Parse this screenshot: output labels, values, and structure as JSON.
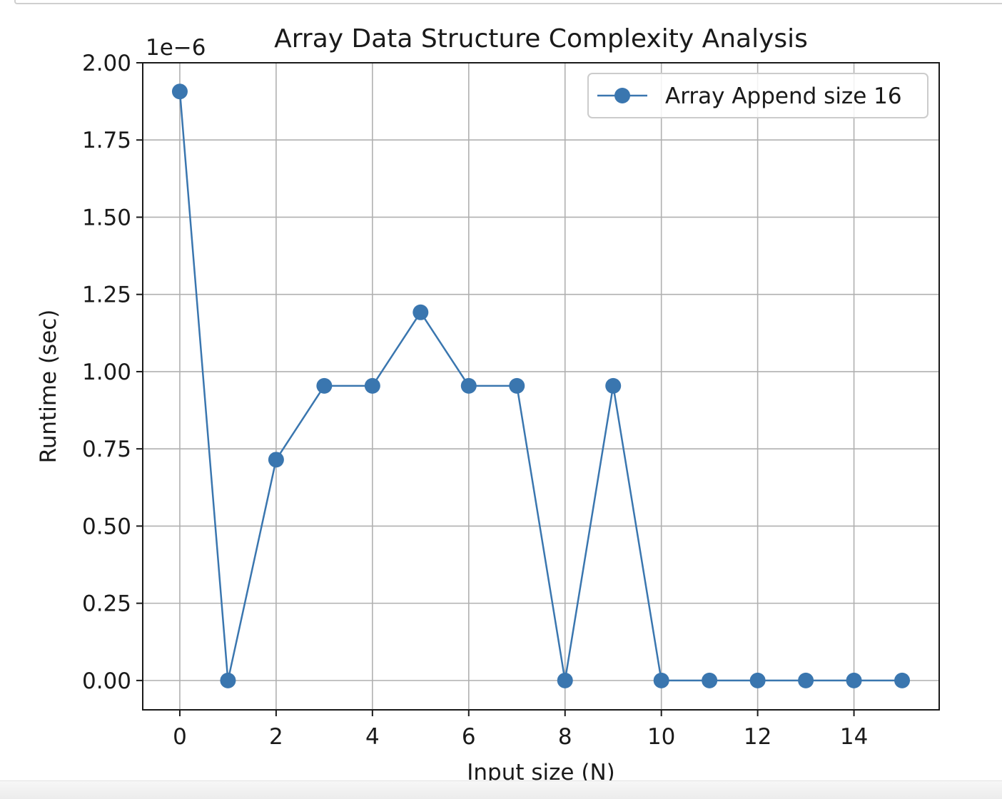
{
  "chart_data": {
    "type": "line",
    "title": "Array Data Structure Complexity Analysis",
    "xlabel": "Input size (N)",
    "ylabel": "Runtime (sec)",
    "y_offset_label": "1e−6",
    "xlim": [
      -0.77,
      15.77
    ],
    "ylim": [
      -0.095,
      2.0
    ],
    "x_ticks": [
      0,
      2,
      4,
      6,
      8,
      10,
      12,
      14
    ],
    "x_tick_labels": [
      "0",
      "2",
      "4",
      "6",
      "8",
      "10",
      "12",
      "14"
    ],
    "y_ticks": [
      0,
      0.25,
      0.5,
      0.75,
      1.0,
      1.25,
      1.5,
      1.75,
      2.0
    ],
    "y_tick_labels": [
      "0.00",
      "0.25",
      "0.50",
      "0.75",
      "1.00",
      "1.25",
      "1.50",
      "1.75",
      "2.00"
    ],
    "grid": true,
    "legend_position": "top-right",
    "series": [
      {
        "name": "Array Append size 16",
        "color": "#3a76af",
        "marker": "circle",
        "x": [
          0,
          1,
          2,
          3,
          4,
          5,
          6,
          7,
          8,
          9,
          10,
          11,
          12,
          13,
          14,
          15
        ],
        "y": [
          1.907,
          0.0,
          0.715,
          0.954,
          0.954,
          1.192,
          0.954,
          0.954,
          0.0,
          0.954,
          0.0,
          0.0,
          0.0,
          0.0,
          0.0,
          0.0
        ]
      }
    ]
  }
}
